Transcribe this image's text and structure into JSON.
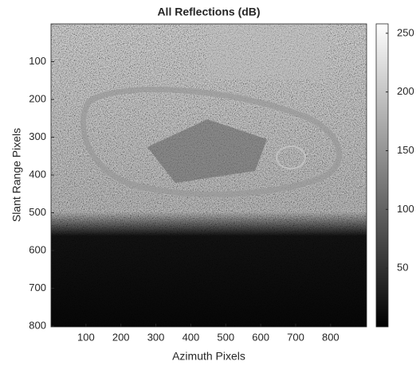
{
  "chart_data": {
    "type": "image",
    "title": "All Reflections (dB)",
    "x_label": "Azimuth Pixels",
    "y_label": "Slant Range Pixels",
    "xlim": [
      0,
      903
    ],
    "ylim": [
      0,
      802
    ],
    "y_reversed": true,
    "xticks": [
      100,
      200,
      300,
      400,
      500,
      600,
      700,
      800
    ],
    "yticks": [
      100,
      200,
      300,
      400,
      500,
      600,
      700,
      800
    ],
    "colormap": "gray",
    "colorbar": {
      "clim": [
        0,
        258
      ],
      "ticks": [
        50,
        100,
        150,
        200,
        250
      ]
    }
  }
}
